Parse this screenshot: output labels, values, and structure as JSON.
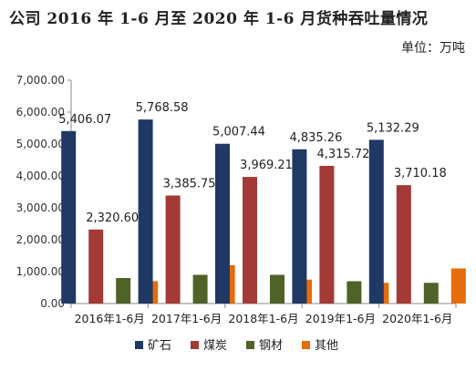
{
  "chart_data": {
    "type": "bar",
    "title": "公司 2016 年 1-6 月至 2020 年 1-6 月货种吞吐量情况",
    "unit": "单位：万吨",
    "categories": [
      "2016年1-6月",
      "2017年1-6月",
      "2018年1-6月",
      "2019年1-6月",
      "2020年1-6月"
    ],
    "series": [
      {
        "name": "矿石",
        "color": "#203864",
        "values": [
          5406.07,
          5768.58,
          5007.44,
          4835.26,
          5132.29
        ]
      },
      {
        "name": "煤炭",
        "color": "#A33A36",
        "values": [
          2320.6,
          3385.75,
          3969.21,
          4315.72,
          3710.18
        ]
      },
      {
        "name": "钢材",
        "color": "#4F6228",
        "values": [
          800,
          900,
          900,
          700,
          650
        ]
      },
      {
        "name": "其他",
        "color": "#E46C0A",
        "values": [
          700,
          1200,
          750,
          650,
          1100
        ]
      }
    ],
    "data_labels": [
      {
        "series": 0,
        "values": [
          "5,406.07",
          "5,768.58",
          "5,007.44",
          "4,835.26",
          "5,132.29"
        ]
      },
      {
        "series": 1,
        "values": [
          "2,320.60",
          "3,385.75",
          "3,969.21",
          "4,315.72",
          "3,710.18"
        ]
      }
    ],
    "yticks": [
      "0.00",
      "1,000.00",
      "2,000.00",
      "3,000.00",
      "4,000.00",
      "5,000.00",
      "6,000.00",
      "7,000.00"
    ],
    "ylim": [
      0,
      7000
    ],
    "grid": false,
    "legend_position": "bottom"
  }
}
